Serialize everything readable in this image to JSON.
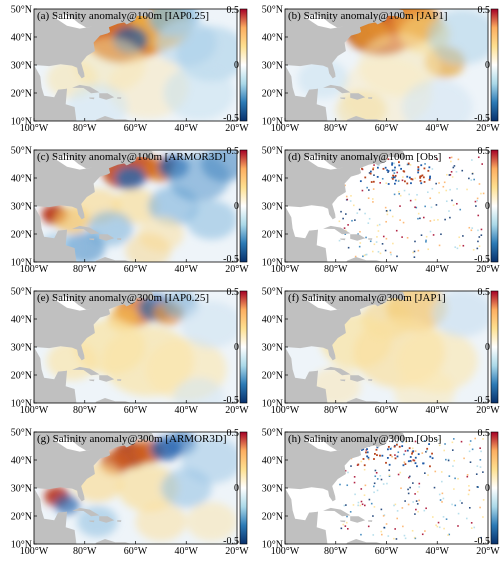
{
  "figure": {
    "panels": [
      {
        "title": "(a) Salinity anomaly@100m [IAP0.25]",
        "style": "smooth100"
      },
      {
        "title": "(b) Salinity anomaly@100m [JAP1]",
        "style": "smooth100b"
      },
      {
        "title": "(c) Salinity anomaly@100m [ARMOR3D]",
        "style": "mixed"
      },
      {
        "title": "(d) Salinity anomaly@100m [Obs]",
        "style": "sparse"
      },
      {
        "title": "(e) Salinity anomaly@300m [IAP0.25]",
        "style": "warm300"
      },
      {
        "title": "(f) Salinity anomaly@300m [JAP1]",
        "style": "warm300b"
      },
      {
        "title": "(g) Salinity anomaly@300m [ARMOR3D]",
        "style": "mixed300"
      },
      {
        "title": "(h) Salinity anomaly@300m [Obs]",
        "style": "sparse"
      }
    ],
    "lon_ticks": [
      "100°W",
      "80°W",
      "60°W",
      "40°W",
      "20°W"
    ],
    "lat_ticks": [
      "50°N",
      "40°N",
      "30°N",
      "20°N",
      "10°N"
    ],
    "colorbar": {
      "ticks": [
        "0.5",
        "0",
        "-0.5"
      ],
      "range": [
        -0.5,
        0.5
      ],
      "colors": [
        "#08306b",
        "#2c7bb6",
        "#abd9e9",
        "#ffffff",
        "#fee090",
        "#fdae61",
        "#a50026"
      ]
    },
    "map_colors": {
      "land": "#c0c0c0",
      "ocean_base": "#eef4f9"
    },
    "map_extent": {
      "lon": [
        -100,
        -20
      ],
      "lat": [
        10,
        50
      ]
    }
  }
}
